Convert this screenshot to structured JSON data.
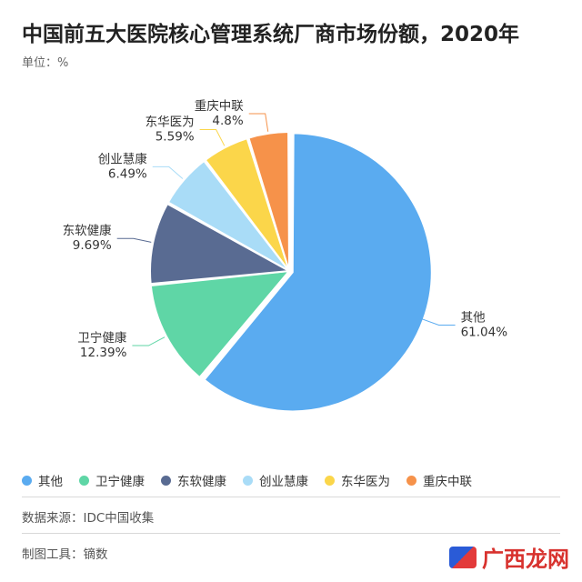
{
  "chart_data": {
    "type": "pie",
    "title": "中国前五大医院核心管理系统厂商市场份额，2020年",
    "unit": "单位：%",
    "slices": [
      {
        "label": "其他",
        "value": 61.04,
        "display": "61.04%",
        "color": "#5aabf0"
      },
      {
        "label": "卫宁健康",
        "value": 12.39,
        "display": "12.39%",
        "color": "#5fd6a6"
      },
      {
        "label": "东软健康",
        "value": 9.69,
        "display": "9.69%",
        "color": "#596b92"
      },
      {
        "label": "创业慧康",
        "value": 6.49,
        "display": "6.49%",
        "color": "#a9dcf7"
      },
      {
        "label": "东华医为",
        "value": 5.59,
        "display": "5.59%",
        "color": "#fbd64a"
      },
      {
        "label": "重庆中联",
        "value": 4.8,
        "display": "4.8%",
        "color": "#f6924a"
      }
    ],
    "legend_position": "bottom"
  },
  "footer": {
    "source": "数据来源：IDC中国收集",
    "tool": "制图工具：镝数"
  },
  "watermark": {
    "text": "广西龙网"
  }
}
